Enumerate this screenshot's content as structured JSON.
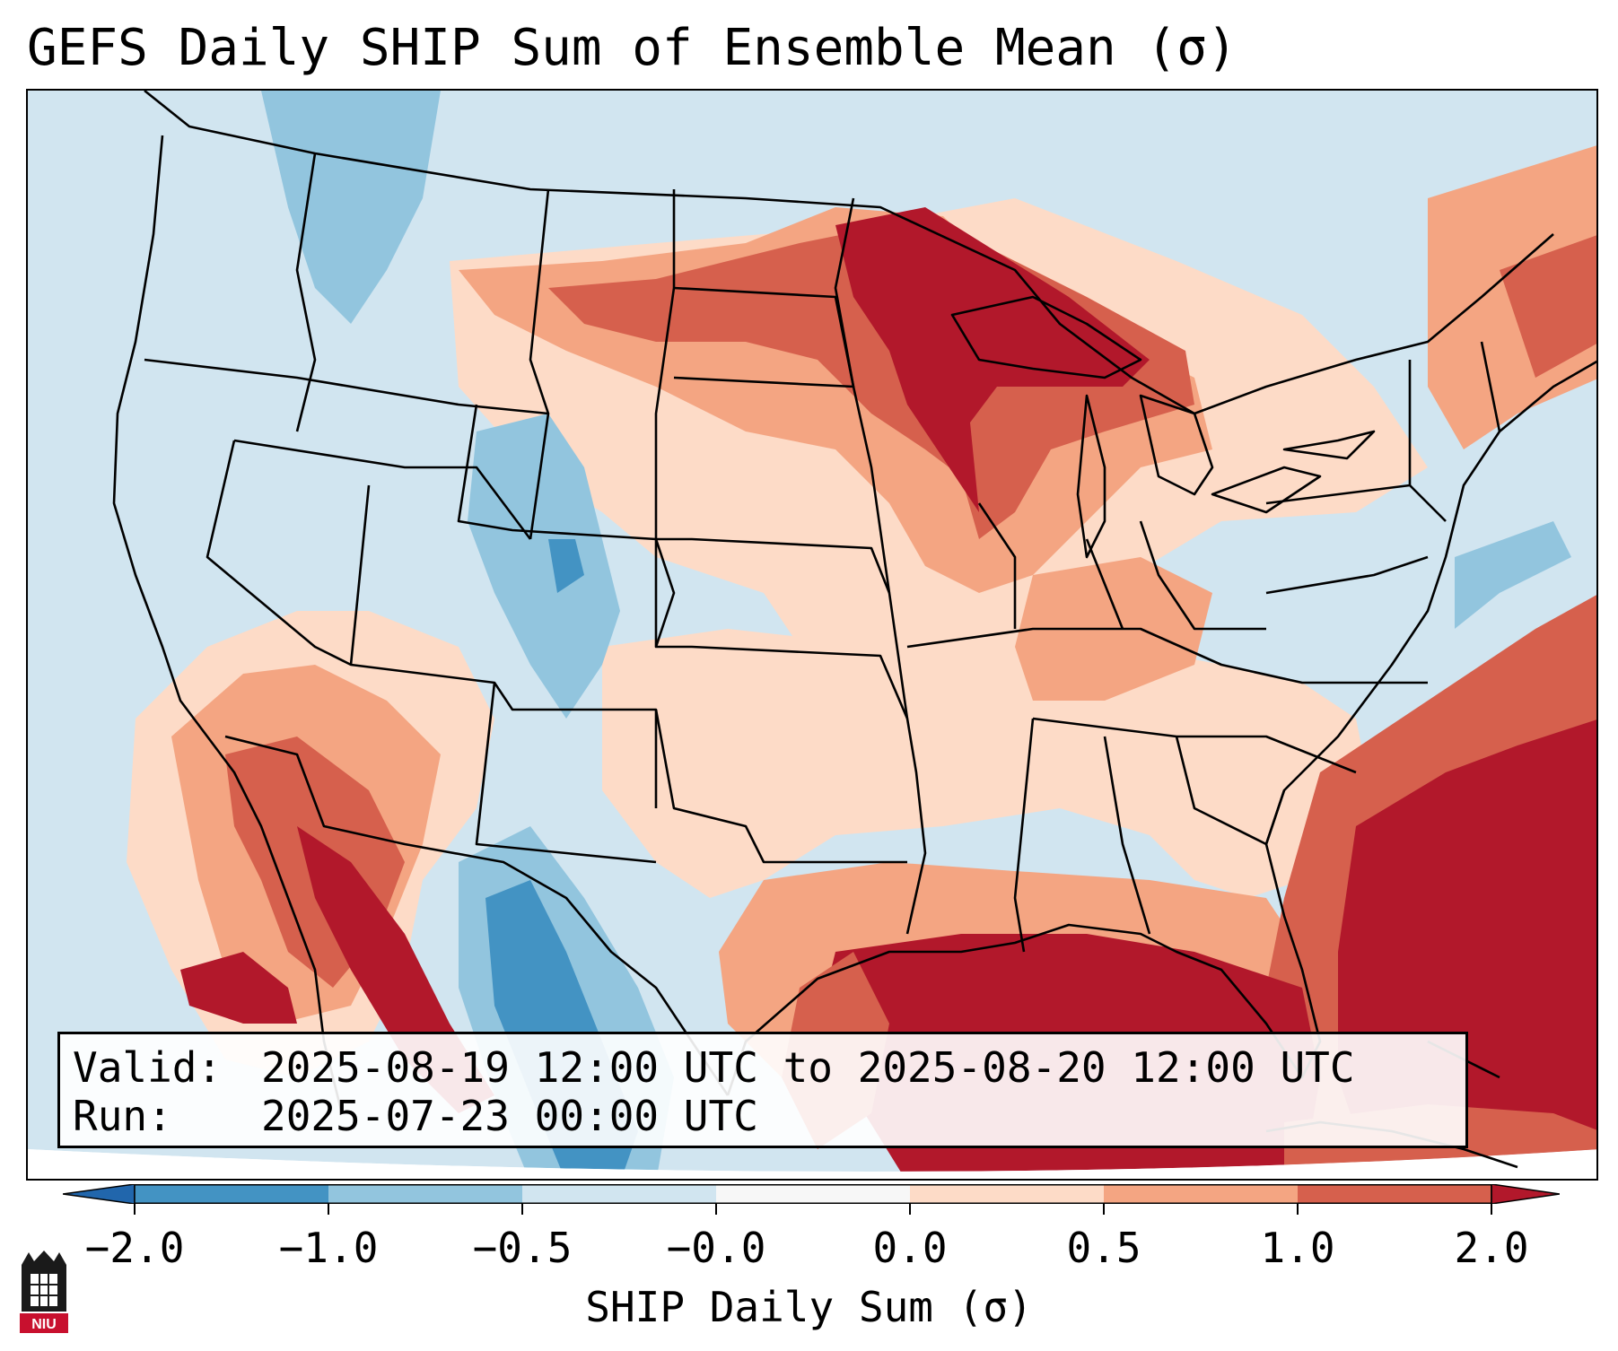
{
  "title": "GEFS Daily SHIP Sum of Ensemble Mean (σ)",
  "info": {
    "valid_label": "Valid:",
    "valid_value": "2025-08-19 12:00 UTC to 2025-08-20 12:00 UTC",
    "run_label": "Run:",
    "run_value": "2025-07-23 00:00 UTC"
  },
  "colorbar": {
    "label": "SHIP Daily Sum (σ)",
    "tick_labels": [
      "−2.0",
      "−1.0",
      "−0.5",
      "−0.0",
      "0.0",
      "0.5",
      "1.0",
      "2.0"
    ],
    "colors": {
      "below_min": "#2166ac",
      "bin_1": "#4393c3",
      "bin_2": "#92c5de",
      "bin_3": "#d1e5f0",
      "bin_4": "#fddbc7",
      "bin_5": "#f4a582",
      "bin_6": "#d6604d",
      "above_max": "#b2182b"
    }
  },
  "logo": {
    "text": "NIU"
  }
}
